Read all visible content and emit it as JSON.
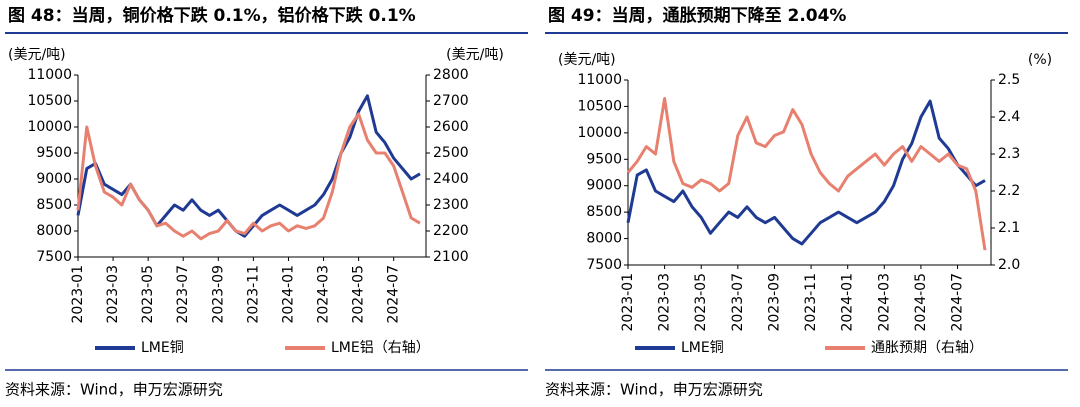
{
  "chart_data": [
    {
      "type": "line",
      "title": "图 48：当周，铜价格下跌 0.1%，铝价格下跌 0.1%",
      "source": "资料来源：Wind，申万宏源研究",
      "y_label": "(美元/吨)",
      "y2_label": "(美元/吨)",
      "categories": [
        "2023-01",
        null,
        null,
        null,
        "2023-03",
        null,
        null,
        null,
        "2023-05",
        null,
        null,
        null,
        "2023-07",
        null,
        null,
        null,
        "2023-09",
        null,
        null,
        null,
        "2023-11",
        null,
        null,
        null,
        "2024-01",
        null,
        null,
        null,
        "2024-03",
        null,
        null,
        null,
        "2024-05",
        null,
        null,
        null,
        "2024-07",
        null,
        null,
        null
      ],
      "ylim": [
        7500,
        11000
      ],
      "yticks": [
        7500,
        8000,
        8500,
        9000,
        9500,
        10000,
        10500,
        11000
      ],
      "y2lim": [
        2100,
        2800
      ],
      "y2ticks": [
        2100,
        2200,
        2300,
        2400,
        2500,
        2600,
        2700,
        2800
      ],
      "series": [
        {
          "name": "LME铜",
          "color": "#1f3a93",
          "values": [
            8300,
            9200,
            9300,
            8900,
            8800,
            8700,
            8900,
            8600,
            8400,
            8100,
            8300,
            8500,
            8400,
            8600,
            8400,
            8300,
            8400,
            8200,
            8000,
            7900,
            8100,
            8300,
            8400,
            8500,
            8400,
            8300,
            8400,
            8500,
            8700,
            9000,
            9500,
            9800,
            10300,
            10600,
            9900,
            9700,
            9400,
            9200,
            9000,
            9100
          ]
        },
        {
          "name": "LME铝（右轴）",
          "color": "#e8806f",
          "axis": "y2",
          "values": [
            2280,
            2600,
            2450,
            2350,
            2330,
            2300,
            2380,
            2320,
            2280,
            2220,
            2230,
            2200,
            2180,
            2200,
            2170,
            2190,
            2200,
            2240,
            2200,
            2190,
            2230,
            2200,
            2220,
            2230,
            2200,
            2220,
            2210,
            2220,
            2250,
            2350,
            2500,
            2600,
            2650,
            2550,
            2500,
            2500,
            2450,
            2350,
            2250,
            2230
          ]
        }
      ]
    },
    {
      "type": "line",
      "title": "图 49：当周，通胀预期下降至 2.04%",
      "source": "资料来源：Wind，申万宏源研究",
      "y_label": "(美元/吨)",
      "y2_label": "(%)",
      "categories": [
        "2023-01",
        null,
        null,
        null,
        "2023-03",
        null,
        null,
        null,
        "2023-05",
        null,
        null,
        null,
        "2023-07",
        null,
        null,
        null,
        "2023-09",
        null,
        null,
        null,
        "2023-11",
        null,
        null,
        null,
        "2024-01",
        null,
        null,
        null,
        "2024-03",
        null,
        null,
        null,
        "2024-05",
        null,
        null,
        null,
        "2024-07",
        null,
        null,
        null
      ],
      "ylim": [
        7500,
        11000
      ],
      "yticks": [
        7500,
        8000,
        8500,
        9000,
        9500,
        10000,
        10500,
        11000
      ],
      "y2lim": [
        2.0,
        2.5
      ],
      "y2ticks": [
        {
          "value": 2.0,
          "label": "2.0"
        },
        2.1,
        2.2,
        2.3,
        2.4,
        2.5
      ],
      "series": [
        {
          "name": "LME铜",
          "color": "#1f3a93",
          "values": [
            8300,
            9200,
            9300,
            8900,
            8800,
            8700,
            8900,
            8600,
            8400,
            8100,
            8300,
            8500,
            8400,
            8600,
            8400,
            8300,
            8400,
            8200,
            8000,
            7900,
            8100,
            8300,
            8400,
            8500,
            8400,
            8300,
            8400,
            8500,
            8700,
            9000,
            9500,
            9800,
            10300,
            10600,
            9900,
            9700,
            9400,
            9200,
            9000,
            9100
          ]
        },
        {
          "name": "通胀预期（右轴）",
          "color": "#e8806f",
          "axis": "y2",
          "values": [
            2.25,
            2.28,
            2.32,
            2.3,
            2.45,
            2.28,
            2.22,
            2.21,
            2.23,
            2.22,
            2.2,
            2.22,
            2.35,
            2.4,
            2.33,
            2.32,
            2.35,
            2.36,
            2.42,
            2.38,
            2.3,
            2.25,
            2.22,
            2.2,
            2.24,
            2.26,
            2.28,
            2.3,
            2.27,
            2.3,
            2.32,
            2.28,
            2.32,
            2.3,
            2.28,
            2.3,
            2.27,
            2.26,
            2.2,
            2.04
          ]
        }
      ]
    }
  ]
}
